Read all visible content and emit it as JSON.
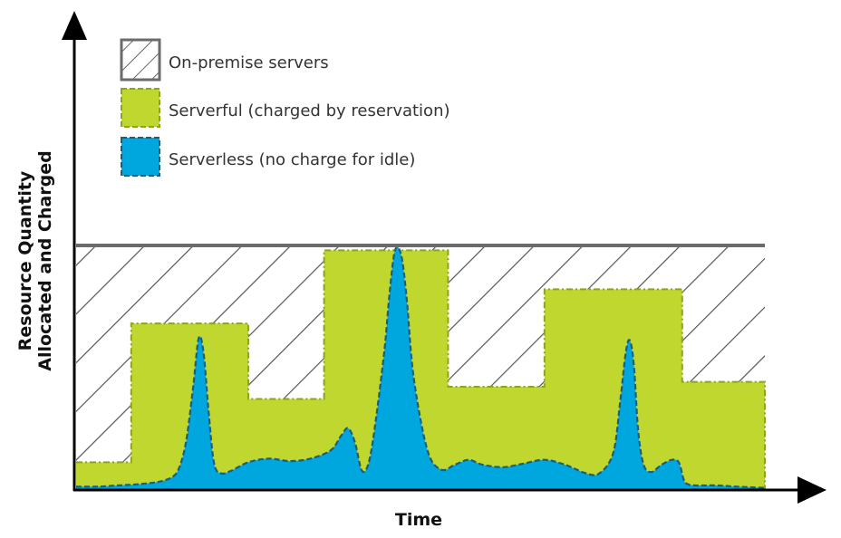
{
  "chart_data": {
    "type": "area",
    "title": "",
    "xlabel": "Time",
    "ylabel_lines": [
      "Resource Quantity",
      "Allocated and Charged"
    ],
    "xlim": [
      0,
      100
    ],
    "ylim": [
      0,
      100
    ],
    "grid": false,
    "legend_position": "top-left",
    "legend": [
      {
        "key": "onprem",
        "label": "On-premise servers",
        "style": "hatched"
      },
      {
        "key": "serverful",
        "label": "Serverful (charged by reservation)",
        "style": "green"
      },
      {
        "key": "serverless",
        "label": "Serverless (no charge for idle)",
        "style": "blue"
      }
    ],
    "series": [
      {
        "key": "onprem",
        "name": "On-premise servers",
        "kind": "constant",
        "x": [
          0,
          100
        ],
        "y": [
          100,
          100
        ]
      },
      {
        "key": "serverful",
        "name": "Serverful (charged by reservation)",
        "kind": "step",
        "x": [
          0,
          8,
          8,
          25,
          25,
          36,
          36,
          54,
          54,
          68,
          68,
          88,
          88,
          100
        ],
        "y": [
          11,
          11,
          68,
          68,
          37,
          37,
          98,
          98,
          42,
          42,
          82,
          82,
          44,
          44
        ]
      },
      {
        "key": "serverless",
        "name": "Serverless (no charge for idle)",
        "kind": "curve",
        "x": [
          0,
          3,
          6,
          9,
          12,
          14,
          15,
          16,
          17,
          17.8,
          18.5,
          19.2,
          20,
          21,
          22.5,
          25,
          28,
          31,
          34,
          37,
          38.5,
          39.5,
          40.5,
          41.5,
          42.5,
          43.5,
          44.8,
          45.5,
          46.3,
          47.2,
          48,
          49,
          51,
          53,
          55,
          57,
          59,
          62,
          65,
          68,
          71,
          74,
          76,
          78,
          79,
          79.8,
          80.4,
          81,
          81.6,
          82.4,
          83.5,
          85,
          86.5,
          87.5,
          88.2,
          88.8,
          90,
          93,
          96,
          100
        ],
        "y": [
          1,
          1,
          1.5,
          2,
          3,
          5,
          9,
          20,
          42,
          62,
          56,
          33,
          11,
          6.5,
          7.5,
          11,
          12.5,
          11.5,
          12.5,
          16,
          22,
          25,
          19,
          7.5,
          11,
          28,
          58,
          80,
          98,
          96,
          78,
          46,
          16,
          8,
          10,
          12,
          10,
          9,
          10.5,
          12,
          10,
          6.5,
          6.5,
          15,
          36,
          56,
          61,
          50,
          24,
          10,
          7,
          10,
          12,
          11,
          4,
          2,
          1.5,
          1.5,
          1,
          0.5
        ]
      }
    ]
  },
  "colors": {
    "onprem": "#6b6b6b",
    "hatch": "#555555",
    "serverful_fill": "#bfd72e",
    "serverful_border": "#8da51a",
    "serverless_fill": "#00a6de",
    "serverless_border": "#1e5c79",
    "axis": "#000000"
  }
}
